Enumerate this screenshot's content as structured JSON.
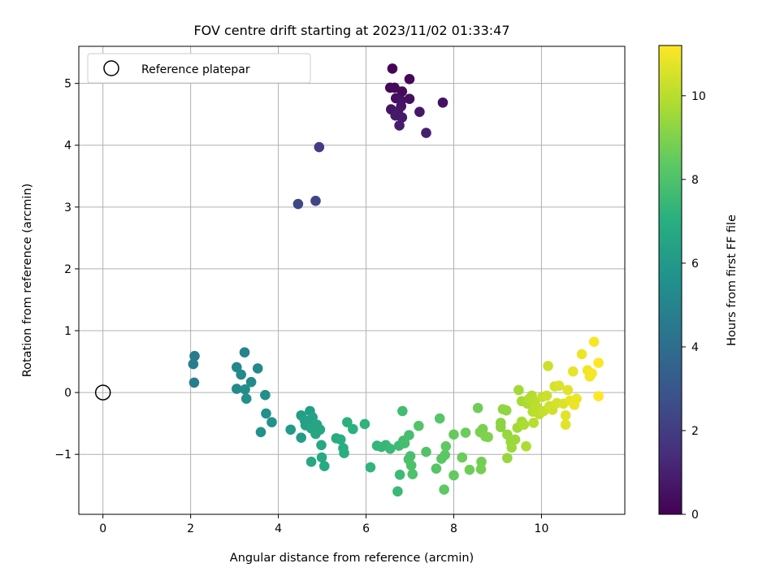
{
  "chart_data": {
    "type": "scatter",
    "title": "FOV centre drift starting at 2023/11/02 01:33:47",
    "xlabel": "Angular distance from reference (arcmin)",
    "ylabel": "Rotation from reference (arcmin)",
    "xlim": [
      -0.55,
      11.9
    ],
    "ylim": [
      -1.97,
      5.6
    ],
    "xticks": [
      0,
      2,
      4,
      6,
      8,
      10
    ],
    "yticks": [
      -1,
      0,
      1,
      2,
      3,
      4,
      5
    ],
    "xtick_labels": [
      "0",
      "2",
      "4",
      "6",
      "8",
      "10"
    ],
    "ytick_labels": [
      "−1",
      "0",
      "1",
      "2",
      "3",
      "4",
      "5"
    ],
    "grid": true,
    "legend": {
      "placement": "top-left",
      "entries": [
        "Reference platepar"
      ]
    },
    "reference_point": {
      "x": 0,
      "y": 0
    },
    "colorbar": {
      "label": "Hours from first FF file",
      "range": [
        0,
        11.2
      ],
      "ticks": [
        0,
        2,
        4,
        6,
        8,
        10
      ],
      "tick_labels": [
        "0",
        "2",
        "4",
        "6",
        "8",
        "10"
      ],
      "colormap": "viridis"
    },
    "series": [
      {
        "points": [
          {
            "x": 6.6,
            "y": 5.24,
            "c": 0.1
          },
          {
            "x": 6.99,
            "y": 5.07,
            "c": 0.2
          },
          {
            "x": 6.55,
            "y": 4.93,
            "c": 0.2
          },
          {
            "x": 6.65,
            "y": 4.93,
            "c": 0.3
          },
          {
            "x": 6.82,
            "y": 4.87,
            "c": 0.3
          },
          {
            "x": 6.68,
            "y": 4.76,
            "c": 0.4
          },
          {
            "x": 6.99,
            "y": 4.75,
            "c": 0.4
          },
          {
            "x": 6.8,
            "y": 4.72,
            "c": 0.5
          },
          {
            "x": 7.75,
            "y": 4.69,
            "c": 0.5
          },
          {
            "x": 6.8,
            "y": 4.63,
            "c": 0.6
          },
          {
            "x": 6.57,
            "y": 4.58,
            "c": 0.6
          },
          {
            "x": 6.73,
            "y": 4.55,
            "c": 0.7
          },
          {
            "x": 7.22,
            "y": 4.54,
            "c": 0.7
          },
          {
            "x": 6.67,
            "y": 4.48,
            "c": 0.8
          },
          {
            "x": 6.82,
            "y": 4.45,
            "c": 0.8
          },
          {
            "x": 6.76,
            "y": 4.32,
            "c": 0.9
          },
          {
            "x": 7.37,
            "y": 4.2,
            "c": 1.0
          },
          {
            "x": 4.93,
            "y": 3.97,
            "c": 2.0
          },
          {
            "x": 4.85,
            "y": 3.1,
            "c": 2.3
          },
          {
            "x": 4.45,
            "y": 3.05,
            "c": 2.4
          },
          {
            "x": 2.09,
            "y": 0.59,
            "c": 4.6
          },
          {
            "x": 2.06,
            "y": 0.46,
            "c": 4.7
          },
          {
            "x": 2.08,
            "y": 0.16,
            "c": 4.7
          },
          {
            "x": 3.23,
            "y": 0.65,
            "c": 5.0
          },
          {
            "x": 3.05,
            "y": 0.41,
            "c": 5.1
          },
          {
            "x": 3.53,
            "y": 0.39,
            "c": 5.2
          },
          {
            "x": 3.15,
            "y": 0.29,
            "c": 5.2
          },
          {
            "x": 3.38,
            "y": 0.17,
            "c": 5.3
          },
          {
            "x": 3.05,
            "y": 0.06,
            "c": 5.3
          },
          {
            "x": 3.24,
            "y": 0.05,
            "c": 5.4
          },
          {
            "x": 3.27,
            "y": -0.1,
            "c": 5.5
          },
          {
            "x": 3.7,
            "y": -0.04,
            "c": 5.5
          },
          {
            "x": 3.72,
            "y": -0.34,
            "c": 5.6
          },
          {
            "x": 3.85,
            "y": -0.48,
            "c": 5.6
          },
          {
            "x": 3.6,
            "y": -0.64,
            "c": 5.7
          },
          {
            "x": 4.28,
            "y": -0.6,
            "c": 6.0
          },
          {
            "x": 4.52,
            "y": -0.73,
            "c": 6.1
          },
          {
            "x": 4.52,
            "y": -0.37,
            "c": 6.2
          },
          {
            "x": 4.72,
            "y": -0.3,
            "c": 6.2
          },
          {
            "x": 4.6,
            "y": -0.45,
            "c": 6.3
          },
          {
            "x": 4.72,
            "y": -0.52,
            "c": 6.3
          },
          {
            "x": 4.78,
            "y": -0.4,
            "c": 6.4
          },
          {
            "x": 4.62,
            "y": -0.53,
            "c": 6.4
          },
          {
            "x": 4.75,
            "y": -0.58,
            "c": 6.5
          },
          {
            "x": 4.88,
            "y": -0.52,
            "c": 6.5
          },
          {
            "x": 4.95,
            "y": -0.6,
            "c": 6.6
          },
          {
            "x": 4.85,
            "y": -0.67,
            "c": 6.6
          },
          {
            "x": 4.75,
            "y": -1.12,
            "c": 6.7
          },
          {
            "x": 4.98,
            "y": -0.85,
            "c": 6.7
          },
          {
            "x": 4.99,
            "y": -1.05,
            "c": 6.8
          },
          {
            "x": 5.05,
            "y": -1.19,
            "c": 6.8
          },
          {
            "x": 5.32,
            "y": -0.74,
            "c": 6.9
          },
          {
            "x": 5.42,
            "y": -0.76,
            "c": 6.9
          },
          {
            "x": 5.48,
            "y": -0.9,
            "c": 7.0
          },
          {
            "x": 5.5,
            "y": -0.98,
            "c": 7.0
          },
          {
            "x": 5.57,
            "y": -0.48,
            "c": 7.1
          },
          {
            "x": 5.7,
            "y": -0.59,
            "c": 7.1
          },
          {
            "x": 5.97,
            "y": -0.51,
            "c": 7.2
          },
          {
            "x": 6.1,
            "y": -1.21,
            "c": 7.3
          },
          {
            "x": 6.25,
            "y": -0.86,
            "c": 7.3
          },
          {
            "x": 6.35,
            "y": -0.88,
            "c": 7.4
          },
          {
            "x": 6.45,
            "y": -0.85,
            "c": 7.4
          },
          {
            "x": 6.55,
            "y": -0.91,
            "c": 7.5
          },
          {
            "x": 6.72,
            "y": -1.6,
            "c": 7.5
          },
          {
            "x": 6.77,
            "y": -1.33,
            "c": 7.6
          },
          {
            "x": 6.75,
            "y": -0.86,
            "c": 7.6
          },
          {
            "x": 6.85,
            "y": -0.78,
            "c": 7.7
          },
          {
            "x": 6.83,
            "y": -0.3,
            "c": 7.7
          },
          {
            "x": 6.88,
            "y": -0.82,
            "c": 7.8
          },
          {
            "x": 6.98,
            "y": -0.69,
            "c": 7.8
          },
          {
            "x": 6.97,
            "y": -1.08,
            "c": 7.9
          },
          {
            "x": 7.01,
            "y": -1.03,
            "c": 7.9
          },
          {
            "x": 7.06,
            "y": -1.32,
            "c": 8.0
          },
          {
            "x": 7.03,
            "y": -1.18,
            "c": 8.0
          },
          {
            "x": 7.2,
            "y": -0.54,
            "c": 8.1
          },
          {
            "x": 7.37,
            "y": -0.96,
            "c": 8.1
          },
          {
            "x": 7.6,
            "y": -1.23,
            "c": 8.2
          },
          {
            "x": 7.68,
            "y": -0.42,
            "c": 8.2
          },
          {
            "x": 7.72,
            "y": -1.07,
            "c": 8.3
          },
          {
            "x": 7.8,
            "y": -1.01,
            "c": 8.3
          },
          {
            "x": 7.82,
            "y": -0.87,
            "c": 8.4
          },
          {
            "x": 7.78,
            "y": -1.57,
            "c": 8.4
          },
          {
            "x": 8.0,
            "y": -1.34,
            "c": 8.5
          },
          {
            "x": 8.0,
            "y": -0.68,
            "c": 8.5
          },
          {
            "x": 8.19,
            "y": -1.05,
            "c": 8.6
          },
          {
            "x": 8.27,
            "y": -0.65,
            "c": 8.6
          },
          {
            "x": 8.36,
            "y": -1.25,
            "c": 8.7
          },
          {
            "x": 8.55,
            "y": -0.25,
            "c": 8.7
          },
          {
            "x": 8.62,
            "y": -1.24,
            "c": 8.8
          },
          {
            "x": 8.63,
            "y": -1.12,
            "c": 8.8
          },
          {
            "x": 8.6,
            "y": -0.64,
            "c": 8.9
          },
          {
            "x": 8.66,
            "y": -0.59,
            "c": 8.9
          },
          {
            "x": 8.72,
            "y": -0.71,
            "c": 9.0
          },
          {
            "x": 8.78,
            "y": -0.72,
            "c": 9.0
          },
          {
            "x": 9.07,
            "y": -0.49,
            "c": 9.2
          },
          {
            "x": 9.07,
            "y": -0.56,
            "c": 9.2
          },
          {
            "x": 9.12,
            "y": -0.27,
            "c": 9.3
          },
          {
            "x": 9.2,
            "y": -0.29,
            "c": 9.3
          },
          {
            "x": 9.22,
            "y": -0.68,
            "c": 9.4
          },
          {
            "x": 9.22,
            "y": -1.06,
            "c": 9.4
          },
          {
            "x": 9.3,
            "y": -0.8,
            "c": 9.4
          },
          {
            "x": 9.32,
            "y": -0.89,
            "c": 9.5
          },
          {
            "x": 9.4,
            "y": -0.76,
            "c": 9.5
          },
          {
            "x": 9.45,
            "y": -0.57,
            "c": 9.6
          },
          {
            "x": 9.48,
            "y": 0.04,
            "c": 9.6
          },
          {
            "x": 9.55,
            "y": -0.14,
            "c": 9.7
          },
          {
            "x": 9.55,
            "y": -0.47,
            "c": 9.7
          },
          {
            "x": 9.6,
            "y": -0.52,
            "c": 9.8
          },
          {
            "x": 9.65,
            "y": -0.87,
            "c": 9.8
          },
          {
            "x": 9.68,
            "y": -0.18,
            "c": 9.8
          },
          {
            "x": 9.72,
            "y": -0.1,
            "c": 9.9
          },
          {
            "x": 9.78,
            "y": -0.05,
            "c": 9.9
          },
          {
            "x": 9.8,
            "y": -0.31,
            "c": 10.0
          },
          {
            "x": 9.82,
            "y": -0.49,
            "c": 10.0
          },
          {
            "x": 9.85,
            "y": -0.15,
            "c": 10.0
          },
          {
            "x": 9.9,
            "y": -0.24,
            "c": 10.1
          },
          {
            "x": 9.95,
            "y": -0.35,
            "c": 10.1
          },
          {
            "x": 10.02,
            "y": -0.07,
            "c": 10.2
          },
          {
            "x": 10.05,
            "y": -0.3,
            "c": 10.2
          },
          {
            "x": 10.12,
            "y": -0.05,
            "c": 10.3
          },
          {
            "x": 10.15,
            "y": 0.43,
            "c": 10.3
          },
          {
            "x": 10.18,
            "y": -0.22,
            "c": 10.4
          },
          {
            "x": 10.25,
            "y": -0.28,
            "c": 10.4
          },
          {
            "x": 10.3,
            "y": 0.1,
            "c": 10.5
          },
          {
            "x": 10.35,
            "y": -0.17,
            "c": 10.5
          },
          {
            "x": 10.4,
            "y": 0.11,
            "c": 10.6
          },
          {
            "x": 10.5,
            "y": -0.18,
            "c": 10.6
          },
          {
            "x": 10.55,
            "y": -0.52,
            "c": 10.7
          },
          {
            "x": 10.55,
            "y": -0.37,
            "c": 10.7
          },
          {
            "x": 10.6,
            "y": 0.04,
            "c": 10.7
          },
          {
            "x": 10.65,
            "y": -0.13,
            "c": 10.8
          },
          {
            "x": 10.72,
            "y": 0.34,
            "c": 10.8
          },
          {
            "x": 10.75,
            "y": -0.2,
            "c": 10.9
          },
          {
            "x": 10.8,
            "y": -0.1,
            "c": 10.9
          },
          {
            "x": 10.92,
            "y": 0.62,
            "c": 10.9
          },
          {
            "x": 11.05,
            "y": 0.36,
            "c": 11.0
          },
          {
            "x": 11.1,
            "y": 0.26,
            "c": 11.0
          },
          {
            "x": 11.15,
            "y": 0.31,
            "c": 11.1
          },
          {
            "x": 11.2,
            "y": 0.82,
            "c": 11.1
          },
          {
            "x": 11.3,
            "y": 0.48,
            "c": 11.2
          },
          {
            "x": 11.3,
            "y": -0.06,
            "c": 11.2
          }
        ]
      }
    ]
  }
}
